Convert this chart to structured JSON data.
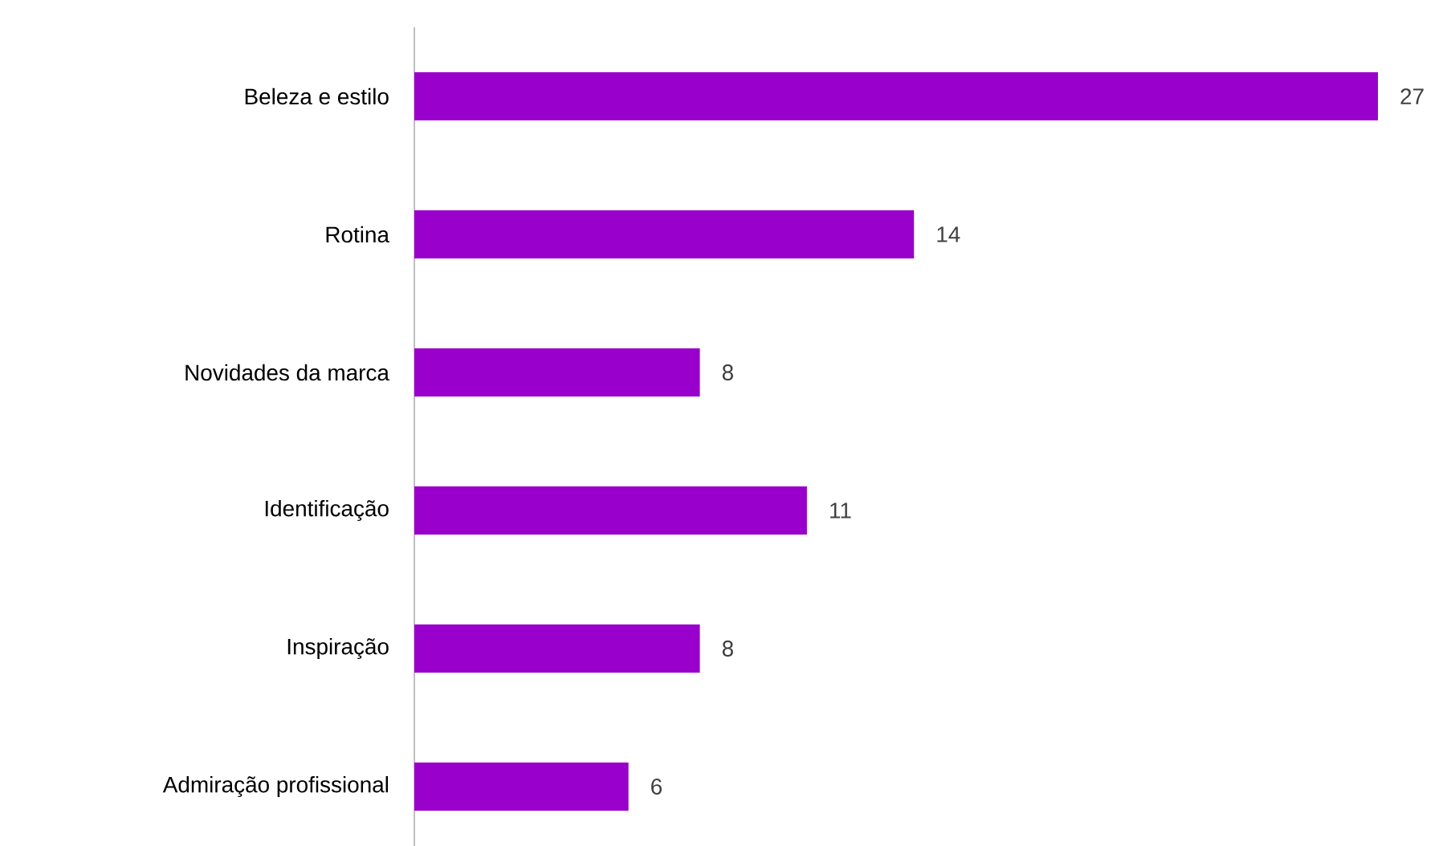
{
  "chart_data": {
    "type": "bar",
    "orientation": "horizontal",
    "categories": [
      "Beleza e estilo",
      "Rotina",
      "Novidades da marca",
      "Identificação",
      "Inspiração",
      "Admiração profissional"
    ],
    "values": [
      27,
      14,
      8,
      11,
      8,
      6
    ],
    "color": "#9900cc",
    "data_labels": true
  }
}
